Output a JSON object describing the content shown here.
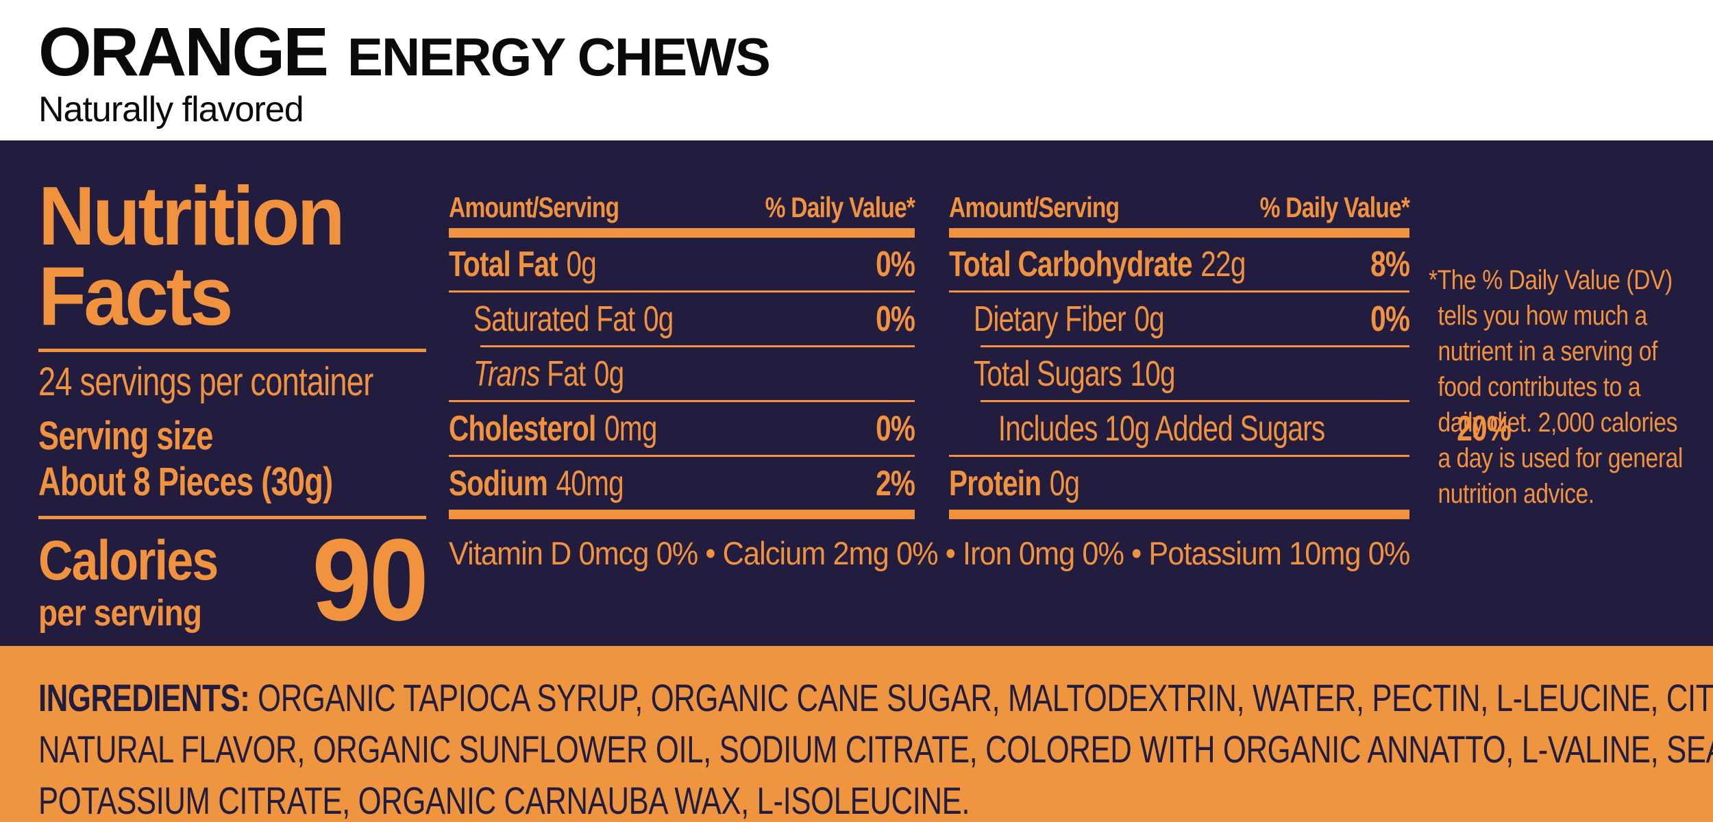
{
  "colors": {
    "navy": "#221d3e",
    "orange": "#f1923e",
    "band_orange": "#f0953f"
  },
  "header": {
    "flavor": "ORANGE",
    "product": "ENERGY CHEWS",
    "subtitle": "Naturally flavored"
  },
  "panel": {
    "title_line1": "Nutrition",
    "title_line2": "Facts",
    "servings_per_container": "24 servings per container",
    "serving_size_label": "Serving size",
    "serving_size_value": "About 8 Pieces (30g)",
    "calories_label": "Calories",
    "calories_sublabel": "per serving",
    "calories_value": "90",
    "column1": {
      "amount_header": "Amount/Serving",
      "dv_header": "% Daily Value*",
      "rows": [
        {
          "label": "Total Fat",
          "value": "0g",
          "dv": "0%"
        },
        {
          "label": "Saturated Fat",
          "value": "0g",
          "dv": "0%"
        },
        {
          "label_italic": "Trans",
          "label": " Fat",
          "value": "0g",
          "dv": ""
        },
        {
          "label": "Cholesterol",
          "value": "0mg",
          "dv": "0%"
        },
        {
          "label": "Sodium",
          "value": "40mg",
          "dv": "2%"
        }
      ]
    },
    "column2": {
      "amount_header": "Amount/Serving",
      "dv_header": "% Daily Value*",
      "rows": [
        {
          "label": "Total Carbohydrate",
          "value": "22g",
          "dv": "8%"
        },
        {
          "label": "Dietary Fiber",
          "value": "0g",
          "dv": "0%"
        },
        {
          "label": "Total Sugars",
          "value": "10g",
          "dv": ""
        },
        {
          "label": "Includes 10g Added Sugars",
          "value": "",
          "dv": "20%"
        },
        {
          "label": "Protein",
          "value": "0g",
          "dv": ""
        }
      ]
    },
    "micronutrients": "Vitamin D 0mcg 0% • Calcium 2mg 0% • Iron 0mg 0% • Potassium 10mg 0%",
    "footnote": "*The % Daily Value (DV) tells you how much a nutrient in a serving of food contributes to a daily diet. 2,000 calories a day is used for general nutrition advice."
  },
  "ingredients": {
    "heading": "INGREDIENTS:",
    "line1": "ORGANIC TAPIOCA SYRUP, ORGANIC CANE SUGAR, MALTODEXTRIN, WATER, PECTIN, L-LEUCINE, CITRIC ACID,",
    "line2": "NATURAL FLAVOR, ORGANIC SUNFLOWER OIL, SODIUM CITRATE, COLORED WITH ORGANIC ANNATTO, L-VALINE, SEA SALT,",
    "line3": "POTASSIUM CITRATE, ORGANIC CARNAUBA WAX, L-ISOLEUCINE."
  }
}
